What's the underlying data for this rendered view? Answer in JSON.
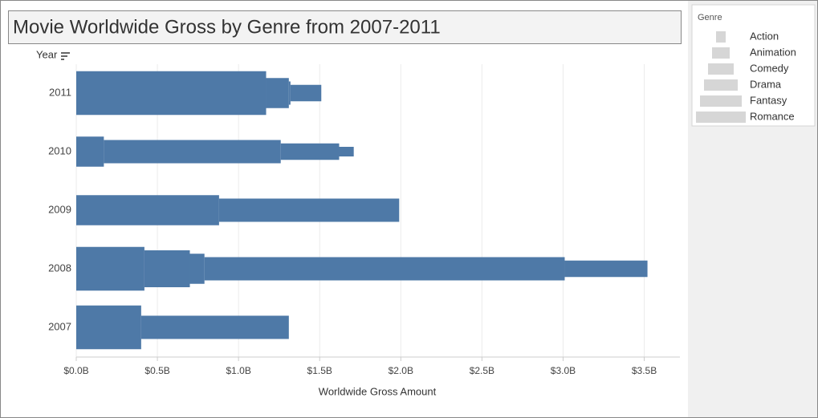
{
  "chart_data": {
    "type": "bar",
    "title": "Movie Worldwide Gross by Genre from 2007-2011",
    "y_axis_label": "Year",
    "x_axis_label": "Worldwide Gross Amount",
    "legend_title": "Genre",
    "categories": [
      "2011",
      "2010",
      "2009",
      "2008",
      "2007"
    ],
    "series": [
      {
        "name": "Action",
        "color": "#4e79a7",
        "values": [
          null,
          0.09,
          null,
          null,
          null
        ]
      },
      {
        "name": "Animation",
        "color": "#4e79a7",
        "values": [
          0.19,
          0.36,
          null,
          0.51,
          null
        ]
      },
      {
        "name": "Comedy",
        "color": "#4e79a7",
        "values": [
          0.01,
          1.09,
          1.11,
          2.22,
          0.91
        ]
      },
      {
        "name": "Drama",
        "color": "#4e79a7",
        "values": [
          0.14,
          0.17,
          0.88,
          0.09,
          null
        ]
      },
      {
        "name": "Fantasy",
        "color": "#4e79a7",
        "values": [
          null,
          null,
          null,
          0.28,
          null
        ]
      },
      {
        "name": "Romance",
        "color": "#4e79a7",
        "values": [
          1.17,
          null,
          null,
          0.42,
          0.4
        ]
      }
    ],
    "xlim": [
      0,
      3.72
    ],
    "xticks": [
      {
        "value": 0,
        "label": "$0.0B"
      },
      {
        "value": 0.5,
        "label": "$0.5B"
      },
      {
        "value": 1,
        "label": "$1.0B"
      },
      {
        "value": 1.5,
        "label": "$1.5B"
      },
      {
        "value": 2,
        "label": "$2.0B"
      },
      {
        "value": 2.5,
        "label": "$2.5B"
      },
      {
        "value": 3,
        "label": "$3.0B"
      },
      {
        "value": 3.5,
        "label": "$3.5B"
      }
    ],
    "grid": true
  }
}
